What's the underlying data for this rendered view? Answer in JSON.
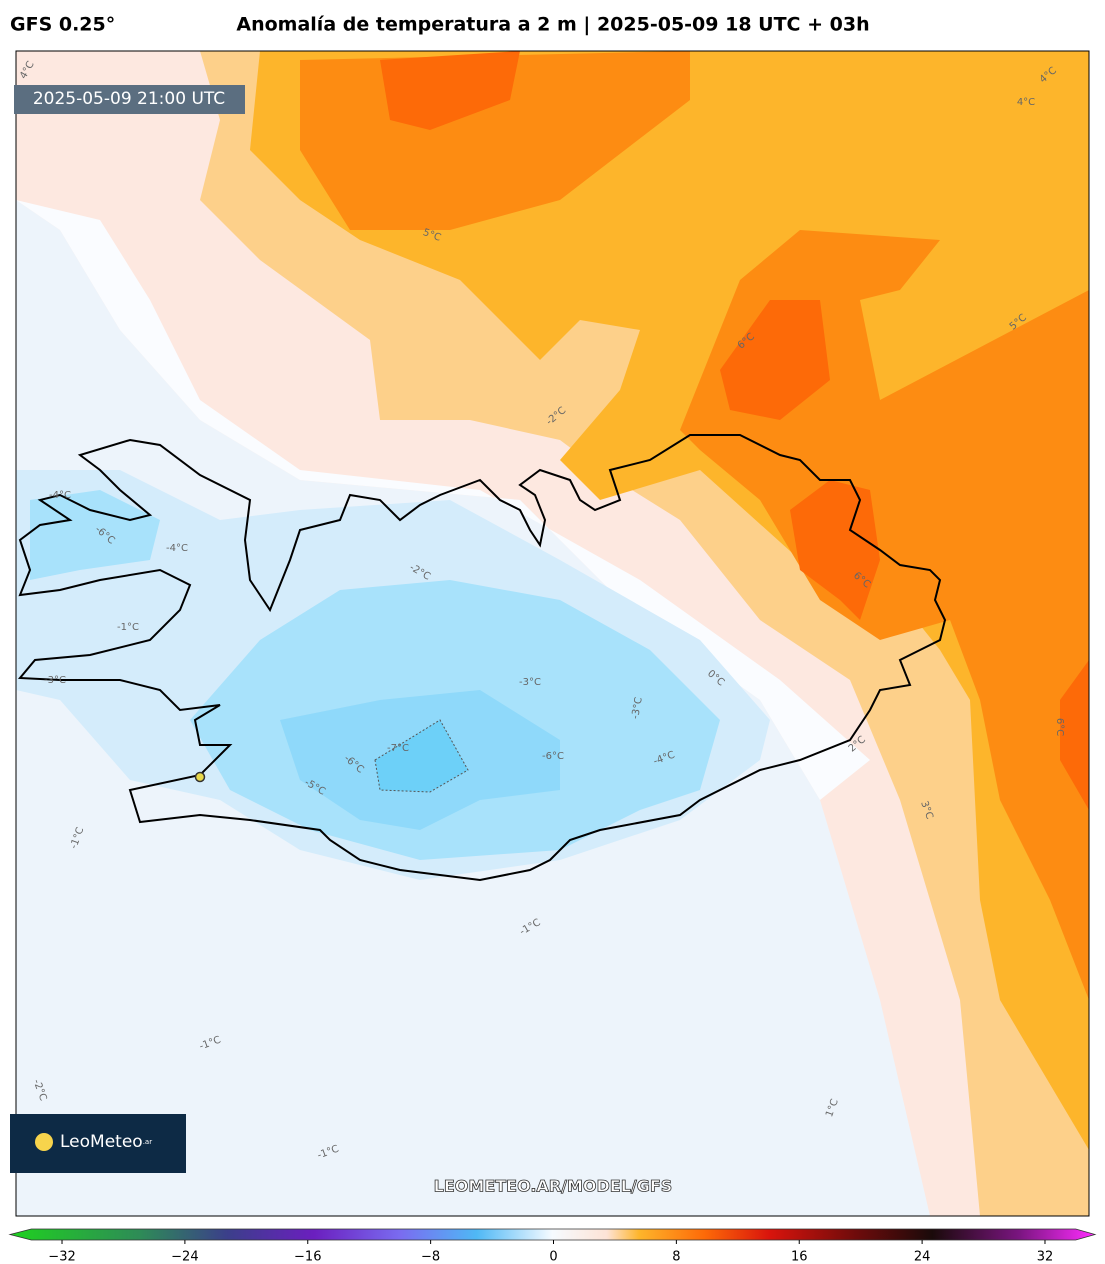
{
  "header": {
    "model": "GFS 0.25°",
    "title": "Anomalía de temperatura a 2 m | 2025-05-09 18 UTC + 03h"
  },
  "map": {
    "valid_time": "2025-05-09 21:00 UTC",
    "watermark": "LEOMETEO.AR/MODEL/GFS",
    "logo": {
      "name": "LeoMeteo",
      "suffix": ".ar"
    },
    "contour_labels": [
      "4°C",
      "4°C",
      "5°C",
      "4°C",
      "-2°C",
      "6°C",
      "5°C",
      "6°C",
      "-6°C",
      "-4°C",
      "-1°C",
      "-2°C",
      "-3°C",
      "0°C",
      "-3°C",
      "-3°C",
      "2°C",
      "-7°C",
      "-6°C",
      "-5°C",
      "-6°C",
      "-4°C",
      "3°C",
      "-1°C",
      "-1°C",
      "-1°C",
      "-2°C",
      "-1°C",
      "1°C",
      "6°C",
      "-4°C"
    ]
  },
  "colorbar": {
    "lim": [
      -34,
      34
    ],
    "ticks": [
      {
        "value": -32,
        "label": "−32"
      },
      {
        "value": -24,
        "label": "−24"
      },
      {
        "value": -16,
        "label": "−16"
      },
      {
        "value": -8,
        "label": "−8"
      },
      0,
      8,
      16,
      24,
      32
    ]
  }
}
